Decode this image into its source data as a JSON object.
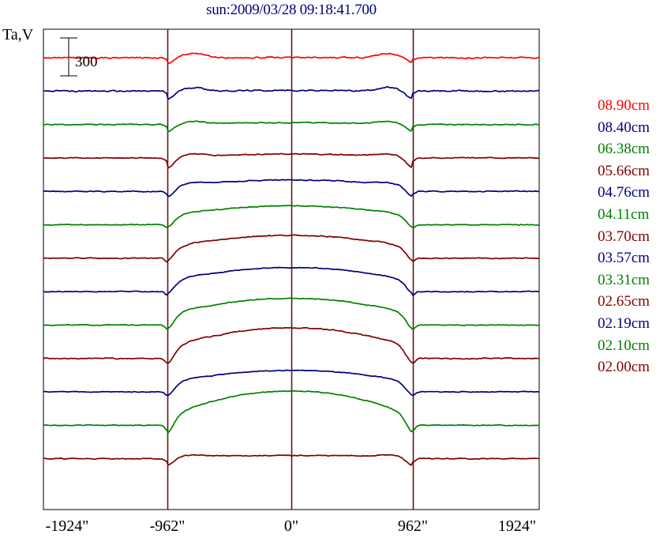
{
  "title": "sun:2009/03/28 09:18:41.700",
  "y_unit_label": "Ta,V",
  "scale_bar_label": "300",
  "x_ticks": [
    "-1924\"",
    "-962\"",
    "0\"",
    "962\"",
    "1924\""
  ],
  "colors": {
    "red": "#ff0000",
    "navy": "#000080",
    "green": "#008000",
    "maroon": "#800000",
    "frame": "#000000",
    "guide": "#5a1a1a"
  },
  "chart_data": {
    "type": "line",
    "title": "sun:2009/03/28 09:18:41.700",
    "xlabel": "",
    "ylabel": "Ta,V",
    "x_unit": "arcsec",
    "xlim": [
      -1924,
      1924
    ],
    "vertical_guides": [
      -962,
      0,
      962
    ],
    "scale_bar": 300,
    "legend_position": "right",
    "grid": false,
    "series": [
      {
        "name": "08.90cm",
        "color": "#ff0000",
        "disk_level": 0,
        "limb_darkening": 0,
        "limb_dip": 45,
        "limb_peak": 35,
        "noise": 9
      },
      {
        "name": "08.40cm",
        "color": "#000080",
        "disk_level": 5,
        "limb_darkening": 10,
        "limb_dip": 60,
        "limb_peak": 30,
        "noise": 9
      },
      {
        "name": "06.38cm",
        "color": "#008000",
        "disk_level": 15,
        "limb_darkening": 20,
        "limb_dip": 50,
        "limb_peak": 20,
        "noise": 6
      },
      {
        "name": "05.66cm",
        "color": "#800000",
        "disk_level": 30,
        "limb_darkening": 30,
        "limb_dip": 80,
        "limb_peak": 20,
        "noise": 6
      },
      {
        "name": "04.76cm",
        "color": "#000080",
        "disk_level": 90,
        "limb_darkening": 60,
        "limb_dip": 75,
        "limb_peak": 15,
        "noise": 6
      },
      {
        "name": "04.11cm",
        "color": "#008000",
        "disk_level": 150,
        "limb_darkening": 100,
        "limb_dip": 70,
        "limb_peak": 10,
        "noise": 5
      },
      {
        "name": "03.70cm",
        "color": "#800000",
        "disk_level": 180,
        "limb_darkening": 120,
        "limb_dip": 80,
        "limb_peak": 10,
        "noise": 6
      },
      {
        "name": "03.57cm",
        "color": "#000080",
        "disk_level": 190,
        "limb_darkening": 130,
        "limb_dip": 75,
        "limb_peak": 10,
        "noise": 5
      },
      {
        "name": "03.31cm",
        "color": "#008000",
        "disk_level": 210,
        "limb_darkening": 150,
        "limb_dip": 90,
        "limb_peak": 10,
        "noise": 5
      },
      {
        "name": "02.65cm",
        "color": "#800000",
        "disk_level": 240,
        "limb_darkening": 180,
        "limb_dip": 100,
        "limb_peak": 10,
        "noise": 7
      },
      {
        "name": "02.19cm",
        "color": "#000080",
        "disk_level": 170,
        "limb_darkening": 120,
        "limb_dip": 80,
        "limb_peak": 10,
        "noise": 5
      },
      {
        "name": "02.10cm",
        "color": "#008000",
        "disk_level": 270,
        "limb_darkening": 220,
        "limb_dip": 110,
        "limb_peak": 5,
        "noise": 5
      },
      {
        "name": "02.00cm",
        "color": "#800000",
        "disk_level": 25,
        "limb_darkening": 10,
        "limb_dip": 70,
        "limb_peak": 10,
        "noise": 6
      }
    ]
  }
}
